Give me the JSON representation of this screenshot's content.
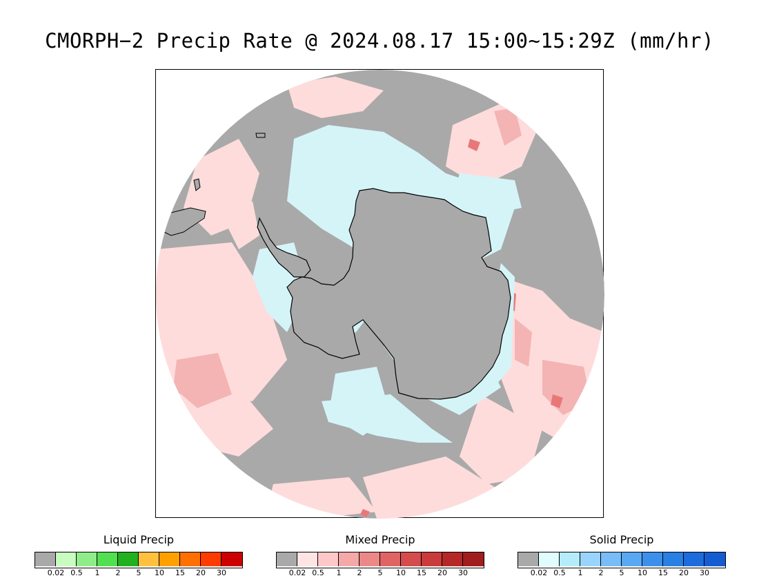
{
  "title": "CMORPH−2 Precip Rate @ 2024.08.17 15:00~15:29Z (mm/hr)",
  "map": {
    "projection": "south-polar-stereographic",
    "colors": {
      "no_data": "#ffffff",
      "ocean_dry": "#a9a9a9",
      "mixed_light": "#ffdcdc",
      "mixed_mid": "#f4b4b4",
      "mixed_strong": "#e87878",
      "solid_light": "#d4f4f8",
      "coastline": "#000000"
    }
  },
  "legends": [
    {
      "title": "Liquid Precip",
      "ticks": [
        "0.02",
        "0.5",
        "1",
        "2",
        "5",
        "10",
        "15",
        "20",
        "30"
      ],
      "colors": [
        "#a9a9a9",
        "#c8fcc0",
        "#90ec88",
        "#50e050",
        "#20b020",
        "#ffc040",
        "#ffa000",
        "#ff7000",
        "#ff3c00",
        "#cc0000"
      ]
    },
    {
      "title": "Mixed Precip",
      "ticks": [
        "0.02",
        "0.5",
        "1",
        "2",
        "5",
        "10",
        "15",
        "20",
        "30"
      ],
      "colors": [
        "#a9a9a9",
        "#ffe4e4",
        "#ffc8c8",
        "#f4a8a8",
        "#ec8888",
        "#e06464",
        "#d44c4c",
        "#c83c3c",
        "#b42828",
        "#a01e1e"
      ]
    },
    {
      "title": "Solid Precip",
      "ticks": [
        "0.02",
        "0.5",
        "1",
        "2",
        "5",
        "10",
        "15",
        "20",
        "30"
      ],
      "colors": [
        "#a9a9a9",
        "#e0fcfc",
        "#b4ecfc",
        "#98d4fc",
        "#78bcf8",
        "#58a8f4",
        "#3c90ec",
        "#2880e4",
        "#1c6cdc",
        "#145cd0"
      ]
    }
  ]
}
